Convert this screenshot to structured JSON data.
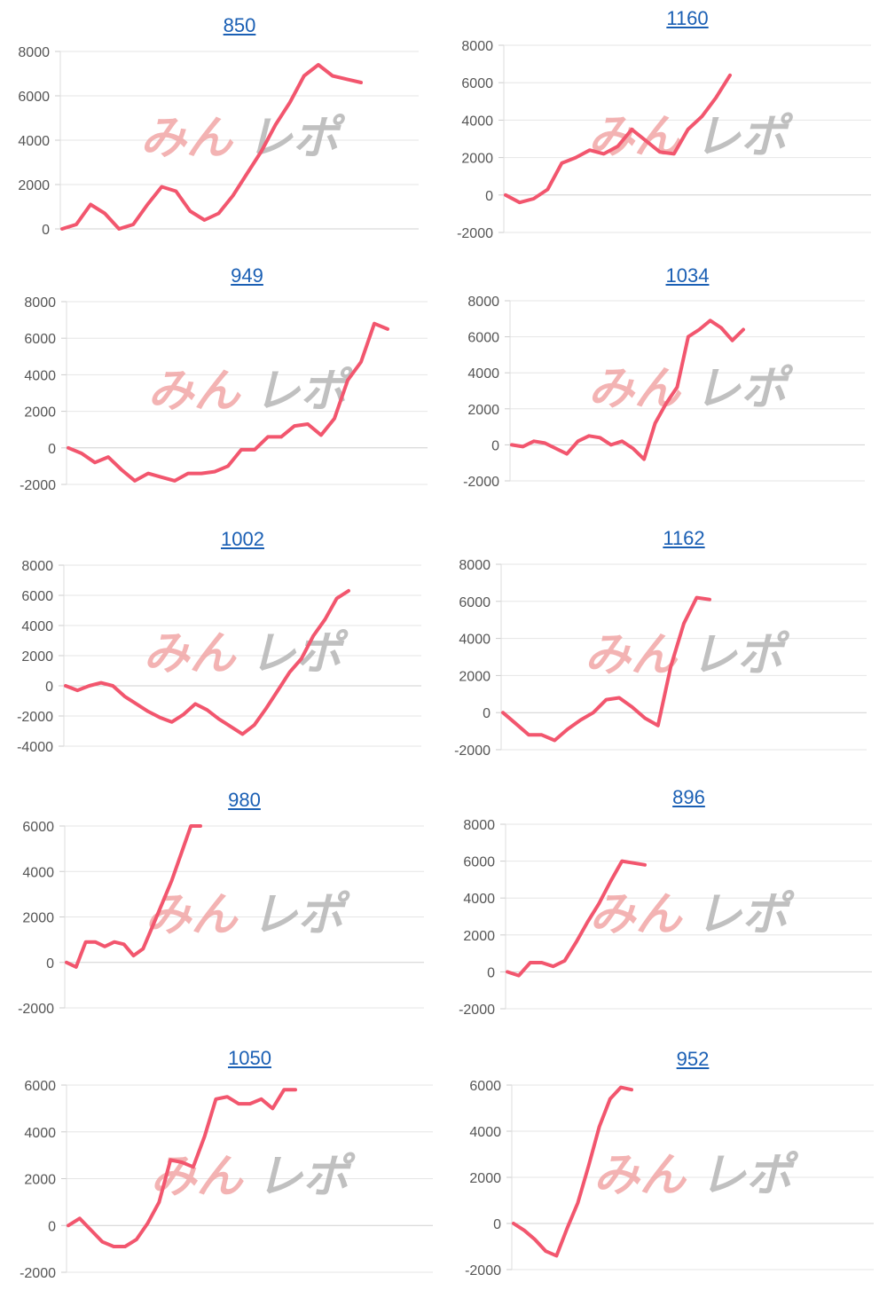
{
  "colors": {
    "line": "#f2566e",
    "grid": "#e6e6e6",
    "title": "#1a5fb4",
    "watermark_left": "#ef9a9a",
    "watermark_right": "#b0b0b0"
  },
  "watermark": {
    "left": "みん",
    "right": "レポ"
  },
  "chart_data": [
    {
      "type": "line",
      "title": "850",
      "yticks": [
        0,
        2000,
        4000,
        6000,
        8000
      ],
      "ylim": [
        0,
        8000
      ],
      "series": [
        {
          "values": [
            0,
            200,
            1100,
            700,
            0,
            200,
            1100,
            1900,
            1700,
            800,
            400,
            700,
            1500,
            2500,
            3500,
            4700,
            5700,
            6900,
            7400,
            6900,
            6750,
            6600
          ]
        }
      ]
    },
    {
      "type": "line",
      "title": "1160",
      "yticks": [
        -2000,
        0,
        2000,
        4000,
        6000,
        8000
      ],
      "ylim": [
        -2000,
        8000
      ],
      "series": [
        {
          "values": [
            0,
            -400,
            -200,
            300,
            1700,
            2000,
            2400,
            2200,
            2600,
            3500,
            2900,
            2300,
            2200,
            3500,
            4200,
            5200,
            6400
          ]
        }
      ]
    },
    {
      "type": "line",
      "title": "949",
      "yticks": [
        -2000,
        0,
        2000,
        4000,
        6000,
        8000
      ],
      "ylim": [
        -2000,
        8000
      ],
      "series": [
        {
          "values": [
            0,
            -300,
            -800,
            -500,
            -1200,
            -1800,
            -1400,
            -1600,
            -1800,
            -1400,
            -1400,
            -1300,
            -1000,
            -100,
            -100,
            600,
            600,
            1200,
            1300,
            700,
            1600,
            3700,
            4700,
            6800,
            6500
          ]
        }
      ]
    },
    {
      "type": "line",
      "title": "1034",
      "yticks": [
        -2000,
        0,
        2000,
        4000,
        6000,
        8000
      ],
      "ylim": [
        -2000,
        8000
      ],
      "series": [
        {
          "values": [
            0,
            -100,
            200,
            100,
            -200,
            -500,
            200,
            500,
            400,
            0,
            200,
            -200,
            -800,
            1200,
            2300,
            3200,
            6000,
            6400,
            6900,
            6500,
            5800,
            6400
          ]
        }
      ]
    },
    {
      "type": "line",
      "title": "1002",
      "yticks": [
        -4000,
        -2000,
        0,
        2000,
        4000,
        6000,
        8000
      ],
      "ylim": [
        -4000,
        8000
      ],
      "series": [
        {
          "values": [
            0,
            -300,
            0,
            200,
            0,
            -700,
            -1200,
            -1700,
            -2100,
            -2400,
            -1900,
            -1200,
            -1600,
            -2200,
            -2700,
            -3200,
            -2600,
            -1500,
            -300,
            900,
            1800,
            3300,
            4400,
            5800,
            6300
          ]
        }
      ]
    },
    {
      "type": "line",
      "title": "1162",
      "yticks": [
        -2000,
        0,
        2000,
        4000,
        6000,
        8000
      ],
      "ylim": [
        -2000,
        8000
      ],
      "series": [
        {
          "values": [
            0,
            -600,
            -1200,
            -1200,
            -1500,
            -900,
            -400,
            0,
            700,
            800,
            300,
            -300,
            -700,
            2500,
            4800,
            6200,
            6100
          ]
        }
      ]
    },
    {
      "type": "line",
      "title": "980",
      "yticks": [
        -2000,
        0,
        2000,
        4000,
        6000
      ],
      "ylim": [
        -2000,
        6000
      ],
      "series": [
        {
          "values": [
            0,
            -200,
            900,
            900,
            700,
            900,
            800,
            300,
            600,
            1600,
            2600,
            3600,
            4800,
            6000,
            6000
          ]
        }
      ]
    },
    {
      "type": "line",
      "title": "896",
      "yticks": [
        -2000,
        0,
        2000,
        4000,
        6000,
        8000
      ],
      "ylim": [
        -2000,
        8000
      ],
      "series": [
        {
          "values": [
            0,
            -200,
            500,
            500,
            300,
            600,
            1600,
            2700,
            3700,
            4900,
            6000,
            5900,
            5800
          ]
        }
      ]
    },
    {
      "type": "line",
      "title": "1050",
      "yticks": [
        -2000,
        0,
        2000,
        4000,
        6000
      ],
      "ylim": [
        -2000,
        6000
      ],
      "series": [
        {
          "values": [
            0,
            300,
            -200,
            -700,
            -900,
            -900,
            -600,
            100,
            1000,
            2800,
            2700,
            2500,
            3800,
            5400,
            5500,
            5200,
            5200,
            5400,
            5000,
            5800,
            5800
          ]
        }
      ]
    },
    {
      "type": "line",
      "title": "952",
      "yticks": [
        -2000,
        0,
        2000,
        4000,
        6000
      ],
      "ylim": [
        -2000,
        6000
      ],
      "series": [
        {
          "values": [
            0,
            -300,
            -700,
            -1200,
            -1400,
            -200,
            900,
            2500,
            4200,
            5400,
            5900,
            5800
          ]
        }
      ]
    }
  ]
}
